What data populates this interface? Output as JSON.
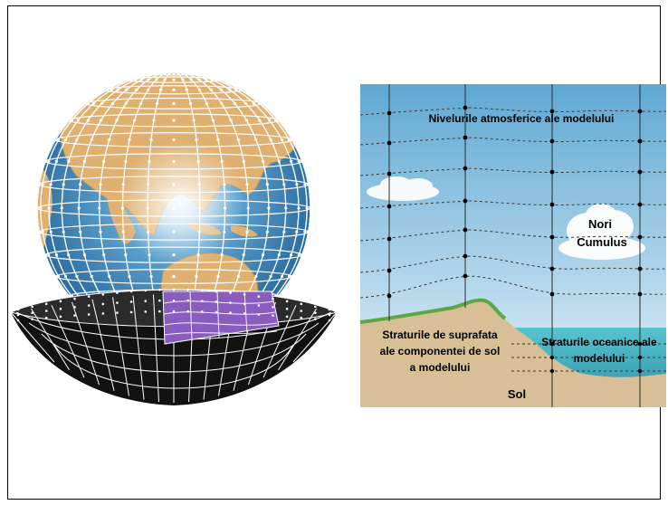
{
  "diagram": {
    "labels": {
      "atmospheric_levels": "Nivelurile atmosferice ale modelului",
      "cumulus_line1": "Nori",
      "cumulus_line2": "Cumulus",
      "land_line1": "Straturile de suprafata",
      "land_line2": "ale componentei de sol",
      "land_line3": "a modelului",
      "ocean_line1": "Straturile oceanice ale",
      "ocean_line2": "modelului",
      "soil": "Sol"
    },
    "colors": {
      "ocean": "#3d8cc4",
      "land": "#e0b070",
      "sky_top": "#5fa8d3",
      "sky_bottom": "#e9f4fa",
      "ground": "#d9bf95",
      "sea": "#4cb8c8",
      "surface_green": "#5aa845",
      "column_purple": "#8a5cc0"
    }
  }
}
